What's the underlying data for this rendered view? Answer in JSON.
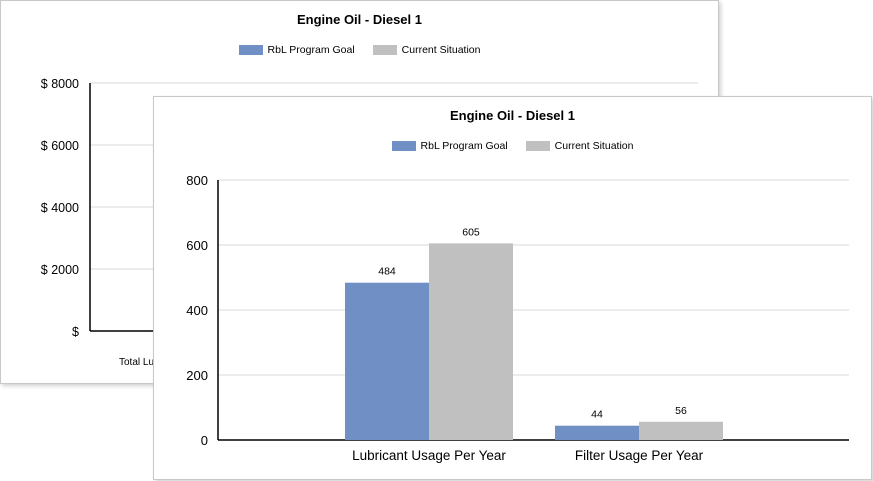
{
  "colors": {
    "goal": "#6f8fc5",
    "current": "#c0c0c0",
    "axis": "#000000",
    "grid": "#d9d9d9"
  },
  "back_chart": {
    "title": "Engine Oil - Diesel 1",
    "legend": [
      "RbL Program Goal",
      "Current Situation"
    ],
    "y_ticks": [
      "$ 8000",
      "$ 6000",
      "$ 4000",
      "$ 2000",
      "$"
    ],
    "x_label_partial": "Total Lu"
  },
  "chart_data": {
    "type": "bar",
    "title": "Engine Oil - Diesel 1",
    "categories": [
      "Lubricant Usage Per Year",
      "Filter Usage Per Year"
    ],
    "series": [
      {
        "name": "RbL Program Goal",
        "values": [
          484,
          44
        ]
      },
      {
        "name": "Current Situation",
        "values": [
          605,
          56
        ]
      }
    ],
    "ylim": [
      0,
      800
    ],
    "yticks": [
      0,
      200,
      400,
      600,
      800
    ],
    "xlabel": "",
    "ylabel": "",
    "grid": true,
    "legend_position": "top-center"
  }
}
